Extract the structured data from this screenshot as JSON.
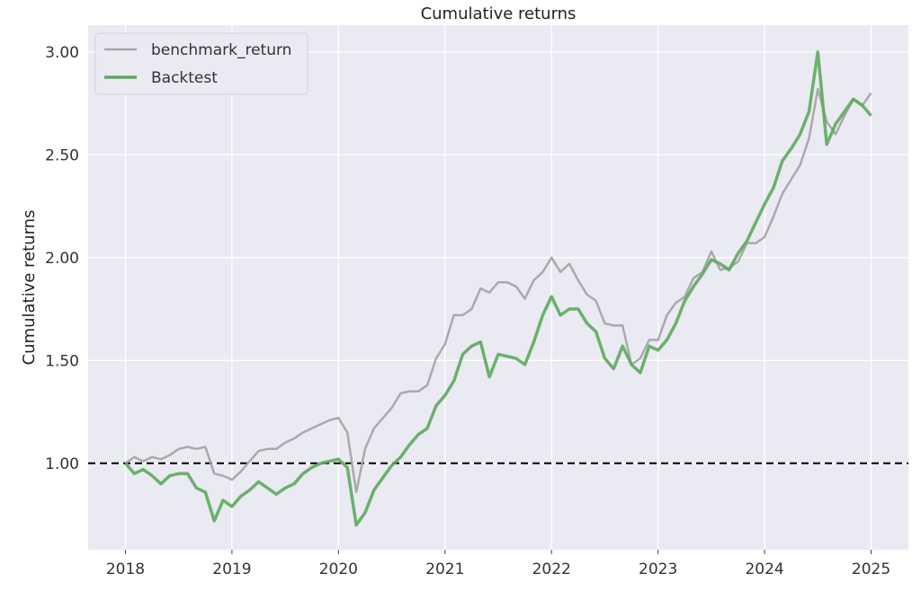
{
  "chart_data": {
    "type": "line",
    "title": "Cumulative returns",
    "xlabel": "",
    "ylabel": "Cumulative returns",
    "xlim": [
      2017.65,
      2025.35
    ],
    "ylim": [
      0.58,
      3.13
    ],
    "grid": true,
    "legend_position": "top-left",
    "background_color": "#eaeaf2",
    "x_ticks": [
      "2018",
      "2019",
      "2020",
      "2021",
      "2022",
      "2023",
      "2024",
      "2025"
    ],
    "y_ticks": [
      "1.00",
      "1.50",
      "2.00",
      "2.50",
      "3.00"
    ],
    "reference_line": {
      "y": 1.0,
      "style": "dashed",
      "color": "#000000"
    },
    "dates": [
      "2018-01",
      "2018-02",
      "2018-03",
      "2018-04",
      "2018-05",
      "2018-06",
      "2018-07",
      "2018-08",
      "2018-09",
      "2018-10",
      "2018-11",
      "2018-12",
      "2019-01",
      "2019-02",
      "2019-03",
      "2019-04",
      "2019-05",
      "2019-06",
      "2019-07",
      "2019-08",
      "2019-09",
      "2019-10",
      "2019-11",
      "2019-12",
      "2020-01",
      "2020-02",
      "2020-03",
      "2020-04",
      "2020-05",
      "2020-06",
      "2020-07",
      "2020-08",
      "2020-09",
      "2020-10",
      "2020-11",
      "2020-12",
      "2021-01",
      "2021-02",
      "2021-03",
      "2021-04",
      "2021-05",
      "2021-06",
      "2021-07",
      "2021-08",
      "2021-09",
      "2021-10",
      "2021-11",
      "2021-12",
      "2022-01",
      "2022-02",
      "2022-03",
      "2022-04",
      "2022-05",
      "2022-06",
      "2022-07",
      "2022-08",
      "2022-09",
      "2022-10",
      "2022-11",
      "2022-12",
      "2023-01",
      "2023-02",
      "2023-03",
      "2023-04",
      "2023-05",
      "2023-06",
      "2023-07",
      "2023-08",
      "2023-09",
      "2023-10",
      "2023-11",
      "2023-12",
      "2024-01",
      "2024-02",
      "2024-03",
      "2024-04",
      "2024-05",
      "2024-06",
      "2024-07",
      "2024-08",
      "2024-09",
      "2024-10",
      "2024-11",
      "2024-12",
      "2025-01"
    ],
    "series": [
      {
        "name": "benchmark_return",
        "color": "#a6a6a6",
        "values": [
          1.0,
          1.03,
          1.01,
          1.03,
          1.02,
          1.04,
          1.07,
          1.08,
          1.07,
          1.08,
          0.95,
          0.94,
          0.92,
          0.96,
          1.01,
          1.06,
          1.07,
          1.07,
          1.1,
          1.12,
          1.15,
          1.17,
          1.19,
          1.21,
          1.22,
          1.15,
          0.86,
          1.07,
          1.17,
          1.22,
          1.27,
          1.34,
          1.35,
          1.35,
          1.38,
          1.51,
          1.58,
          1.72,
          1.72,
          1.75,
          1.85,
          1.83,
          1.88,
          1.88,
          1.86,
          1.8,
          1.89,
          1.93,
          2.0,
          1.93,
          1.97,
          1.89,
          1.82,
          1.79,
          1.68,
          1.67,
          1.67,
          1.48,
          1.51,
          1.6,
          1.6,
          1.72,
          1.78,
          1.81,
          1.9,
          1.93,
          2.03,
          1.94,
          1.95,
          1.98,
          2.07,
          2.07,
          2.1,
          2.2,
          2.31,
          2.38,
          2.45,
          2.58,
          2.82,
          2.66,
          2.6,
          2.69,
          2.77,
          2.74,
          2.8
        ]
      },
      {
        "name": "Backtest",
        "color": "#5daa5d",
        "values": [
          1.0,
          0.95,
          0.97,
          0.94,
          0.9,
          0.94,
          0.95,
          0.95,
          0.88,
          0.86,
          0.72,
          0.82,
          0.79,
          0.84,
          0.87,
          0.91,
          0.88,
          0.85,
          0.88,
          0.9,
          0.95,
          0.98,
          1.0,
          1.01,
          1.02,
          0.98,
          0.7,
          0.76,
          0.87,
          0.93,
          0.99,
          1.03,
          1.09,
          1.14,
          1.17,
          1.28,
          1.33,
          1.4,
          1.53,
          1.57,
          1.59,
          1.42,
          1.53,
          1.52,
          1.51,
          1.48,
          1.59,
          1.72,
          1.81,
          1.72,
          1.75,
          1.75,
          1.68,
          1.64,
          1.51,
          1.46,
          1.57,
          1.48,
          1.44,
          1.57,
          1.55,
          1.6,
          1.68,
          1.79,
          1.86,
          1.92,
          1.99,
          1.97,
          1.94,
          2.02,
          2.08,
          2.17,
          2.26,
          2.34,
          2.47,
          2.53,
          2.6,
          2.71,
          3.0,
          2.55,
          2.65,
          2.71,
          2.77,
          2.74,
          2.69
        ]
      }
    ]
  }
}
